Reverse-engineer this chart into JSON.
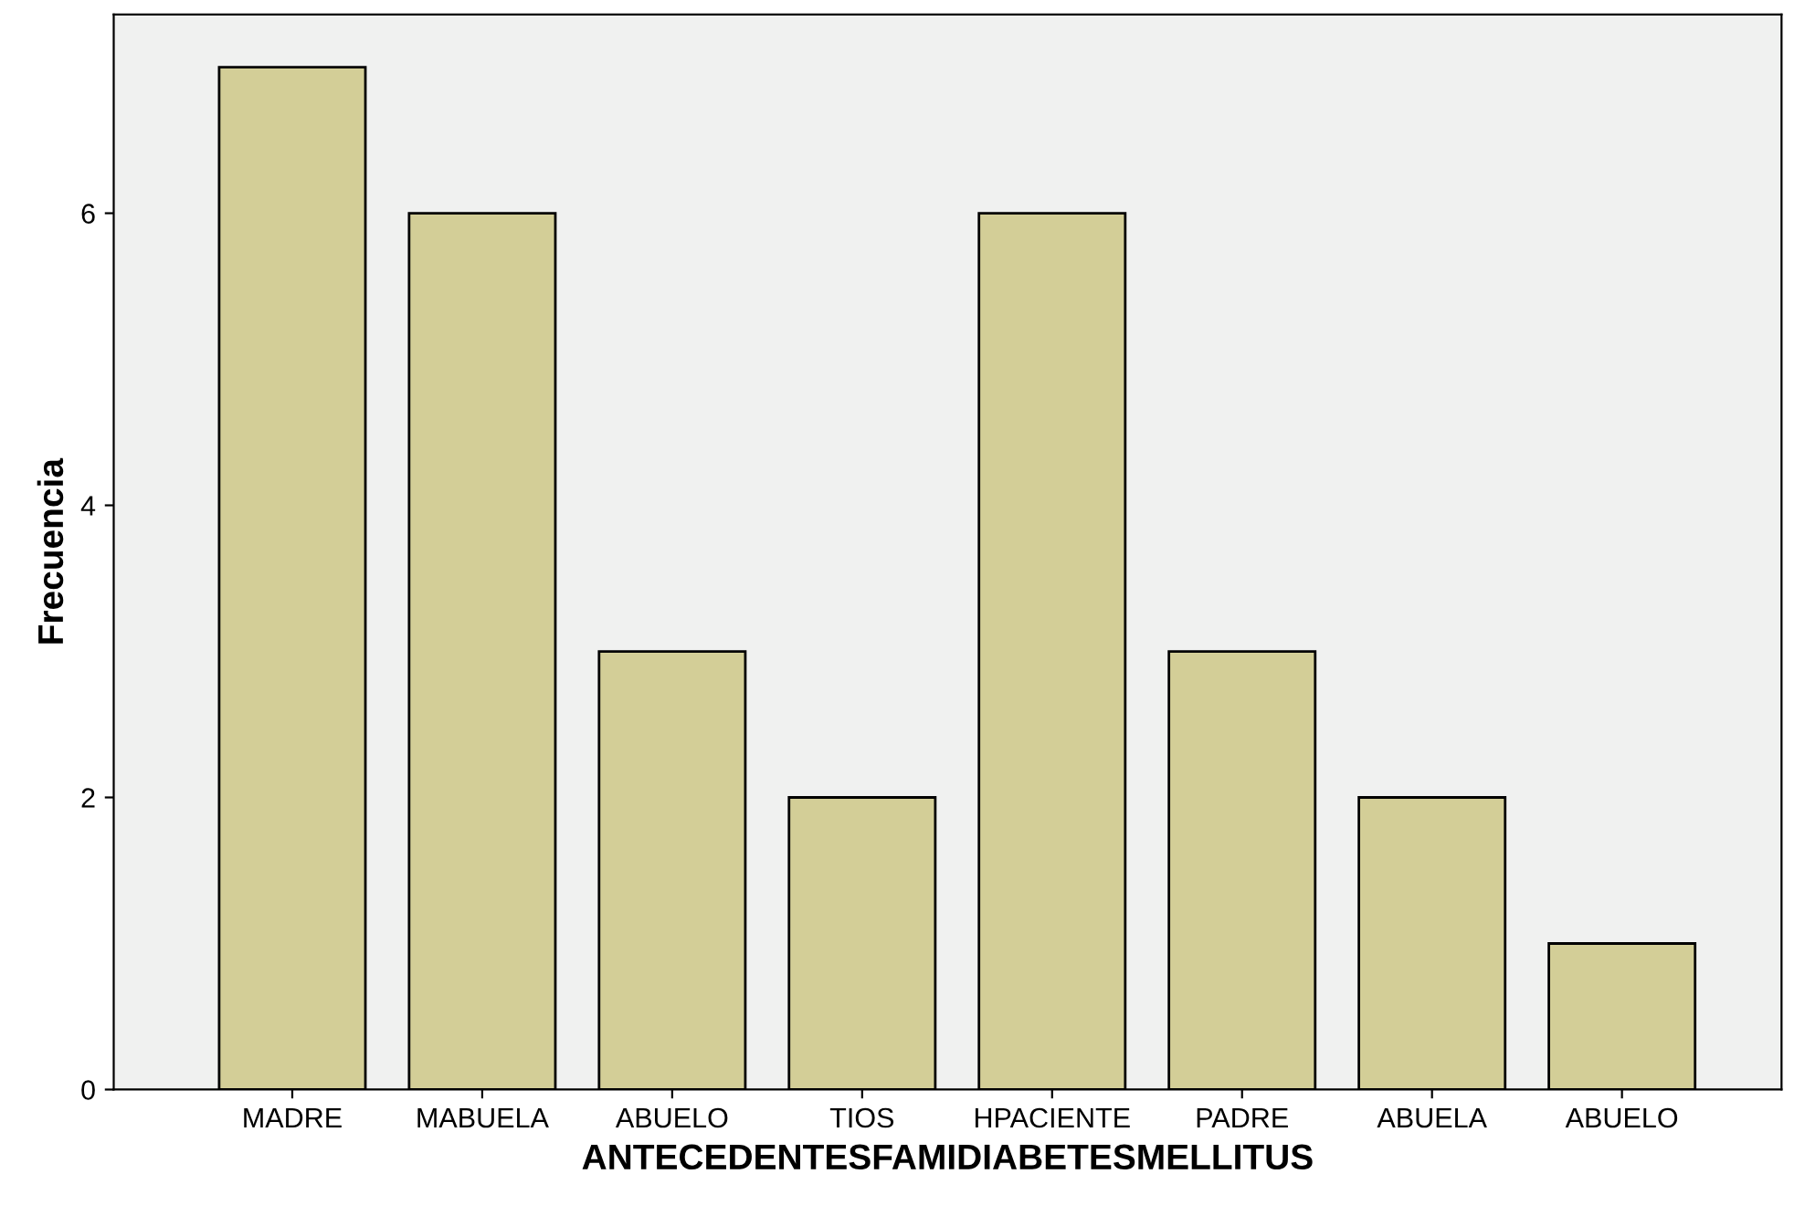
{
  "chart_data": {
    "type": "bar",
    "xlabel": "ANTECEDENTESFAMIDIABETESMELLITUS",
    "ylabel": "Frecuencia",
    "categories": [
      "MADRE",
      "MABUELA",
      "ABUELO",
      "TIOS",
      "HPACIENTE",
      "PADRE",
      "ABUELA",
      "ABUELO"
    ],
    "values": [
      7,
      6,
      3,
      2,
      6,
      3,
      2,
      1
    ],
    "color": "#d3ce97",
    "ylim": [
      0,
      7.36
    ],
    "yticks": [
      0,
      2,
      4,
      6
    ],
    "grid": false,
    "legend": false
  }
}
